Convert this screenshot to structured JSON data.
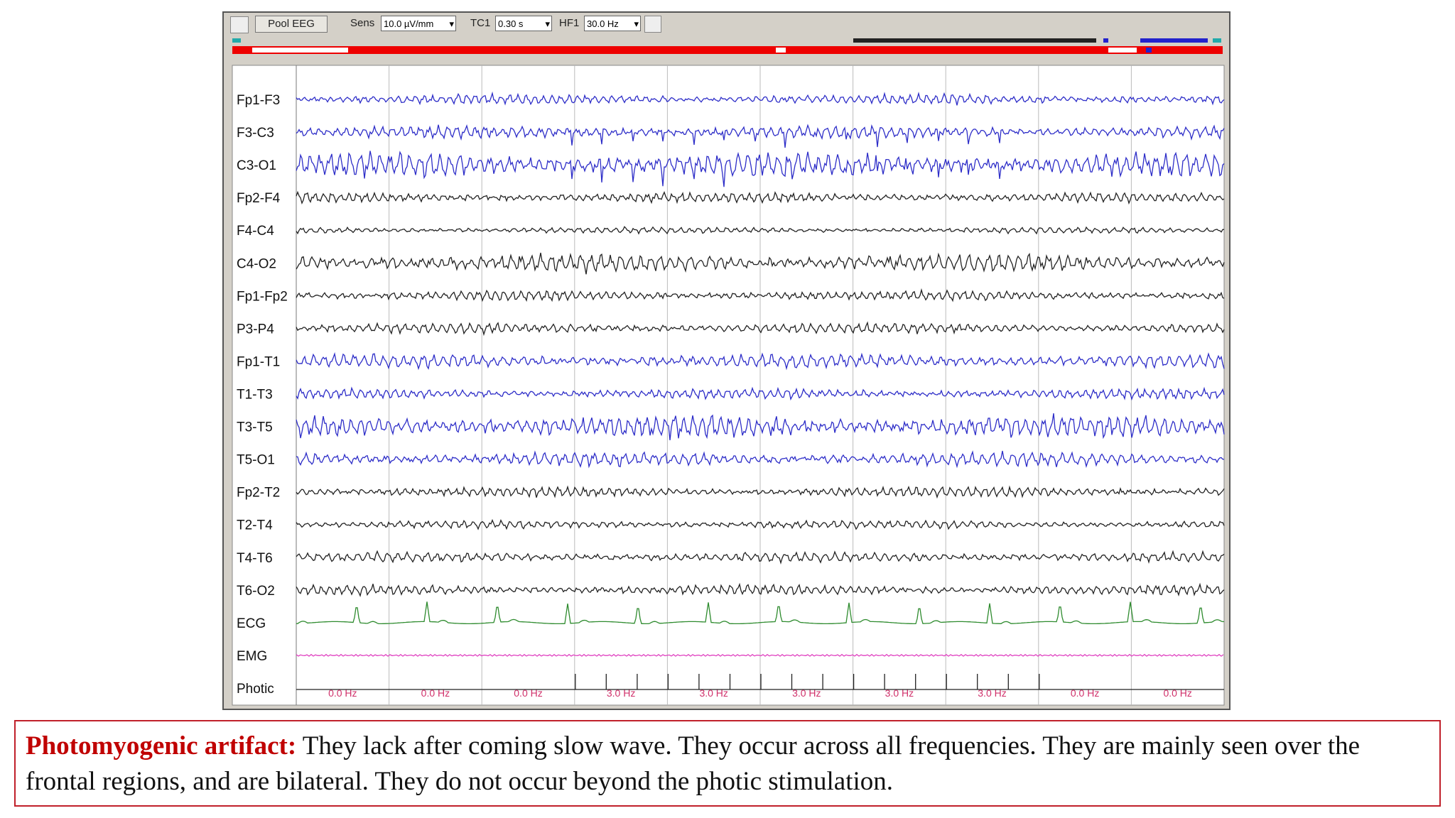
{
  "toolbar": {
    "montage": "Pool EEG",
    "sens_label": "Sens",
    "sens_value": "10.0 µV/mm",
    "tc_label": "TC1",
    "tc_value": "0.30 s",
    "hf_label": "HF1",
    "hf_value": "30.0 Hz"
  },
  "channels": [
    {
      "label": "Fp1-F3",
      "color": "#2d2dc8"
    },
    {
      "label": "F3-C3",
      "color": "#2d2dc8"
    },
    {
      "label": "C3-O1",
      "color": "#2d2dc8"
    },
    {
      "label": "Fp2-F4",
      "color": "#222222"
    },
    {
      "label": "F4-C4",
      "color": "#222222"
    },
    {
      "label": "C4-O2",
      "color": "#222222"
    },
    {
      "label": "Fp1-Fp2",
      "color": "#222222"
    },
    {
      "label": "P3-P4",
      "color": "#222222"
    },
    {
      "label": "Fp1-T1",
      "color": "#2d2dc8"
    },
    {
      "label": "T1-T3",
      "color": "#2d2dc8"
    },
    {
      "label": "T3-T5",
      "color": "#2d2dc8"
    },
    {
      "label": "T5-O1",
      "color": "#2d2dc8"
    },
    {
      "label": "Fp2-T2",
      "color": "#222222"
    },
    {
      "label": "T2-T4",
      "color": "#222222"
    },
    {
      "label": "T4-T6",
      "color": "#222222"
    },
    {
      "label": "T6-O2",
      "color": "#222222"
    },
    {
      "label": "ECG",
      "color": "#2e8b2e"
    },
    {
      "label": "EMG",
      "color": "#e040c0"
    },
    {
      "label": "Photic",
      "color": "#222222"
    }
  ],
  "photic_labels": [
    "0.0 Hz",
    "0.0 Hz",
    "0.0 Hz",
    "3.0 Hz",
    "3.0 Hz",
    "3.0 Hz",
    "3.0 Hz",
    "3.0 Hz",
    "0.0 Hz",
    "0.0 Hz"
  ],
  "caption": {
    "label": "Photomyogenic artifact:",
    "text": "They lack after coming slow wave. They occur across all frequencies. They are mainly seen over the frontal regions, and are bilateral. They do not occur beyond the photic stimulation."
  }
}
